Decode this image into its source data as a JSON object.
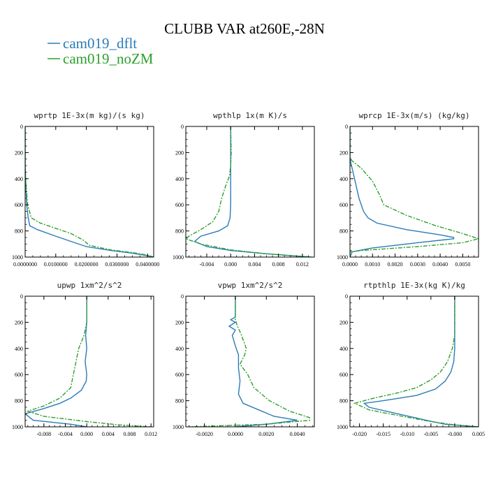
{
  "figure": {
    "title": "CLUBB VAR at260E,-28N",
    "legend": [
      {
        "name": "cam019_dflt",
        "color": "#2c7bb6"
      },
      {
        "name": "cam019_noZM",
        "color": "#2ca02c"
      }
    ]
  },
  "chart_data": [
    {
      "type": "line",
      "title": "wprtp   1E-3x(m kg)/(s kg)",
      "xlim": [
        0,
        0.042
      ],
      "ylim": [
        0,
        1000
      ],
      "y_inverted": true,
      "xticks": [
        0,
        0.01,
        0.02,
        0.03,
        0.04
      ],
      "xtick_labels": [
        "0.0000000",
        "0.0100000",
        "0.0200000",
        "0.0300000",
        "0.0400000"
      ],
      "yticks": [
        0,
        200,
        400,
        600,
        800,
        1000
      ],
      "series": [
        {
          "name": "cam019_dflt",
          "points": [
            [
              0,
              0
            ],
            [
              0,
              300
            ],
            [
              0.0002,
              450
            ],
            [
              0.0005,
              600
            ],
            [
              0.001,
              700
            ],
            [
              0.0015,
              760
            ],
            [
              0.004,
              790
            ],
            [
              0.01,
              840
            ],
            [
              0.015,
              880
            ],
            [
              0.02,
              920
            ],
            [
              0.028,
              950
            ],
            [
              0.035,
              970
            ],
            [
              0.04,
              990
            ],
            [
              0.042,
              1000
            ]
          ]
        },
        {
          "name": "cam019_noZM",
          "points": [
            [
              0,
              0
            ],
            [
              0,
              300
            ],
            [
              0.0003,
              450
            ],
            [
              0.0008,
              600
            ],
            [
              0.002,
              700
            ],
            [
              0.005,
              740
            ],
            [
              0.01,
              780
            ],
            [
              0.015,
              820
            ],
            [
              0.019,
              870
            ],
            [
              0.021,
              910
            ],
            [
              0.028,
              945
            ],
            [
              0.035,
              965
            ],
            [
              0.04,
              985
            ],
            [
              0.042,
              1000
            ]
          ]
        }
      ]
    },
    {
      "type": "line",
      "title": "wpthlp   1x(m K)/s",
      "xlim": [
        -0.0075,
        0.014
      ],
      "ylim": [
        0,
        1000
      ],
      "y_inverted": true,
      "xticks": [
        -0.004,
        0,
        0.004,
        0.008,
        0.012
      ],
      "xtick_labels": [
        "-0.004",
        "0.000",
        "0.004",
        "0.008",
        "0.012"
      ],
      "yticks": [
        0,
        200,
        400,
        600,
        800,
        1000
      ],
      "series": [
        {
          "name": "cam019_dflt",
          "points": [
            [
              0,
              0
            ],
            [
              0,
              200
            ],
            [
              0,
              400
            ],
            [
              0,
              600
            ],
            [
              -0.0001,
              700
            ],
            [
              -0.0005,
              760
            ],
            [
              -0.002,
              800
            ],
            [
              -0.005,
              840
            ],
            [
              -0.006,
              880
            ],
            [
              -0.004,
              920
            ],
            [
              0,
              950
            ],
            [
              0.006,
              975
            ],
            [
              0.012,
              995
            ],
            [
              0.0135,
              1000
            ]
          ]
        },
        {
          "name": "cam019_noZM",
          "points": [
            [
              0,
              0
            ],
            [
              0.0001,
              200
            ],
            [
              0,
              300
            ],
            [
              -0.0002,
              380
            ],
            [
              -0.0008,
              450
            ],
            [
              -0.0015,
              550
            ],
            [
              -0.002,
              650
            ],
            [
              -0.003,
              730
            ],
            [
              -0.005,
              790
            ],
            [
              -0.007,
              840
            ],
            [
              -0.0075,
              860
            ],
            [
              -0.005,
              900
            ],
            [
              0,
              945
            ],
            [
              0.006,
              975
            ],
            [
              0.012,
              995
            ],
            [
              0.0135,
              1000
            ]
          ]
        }
      ]
    },
    {
      "type": "line",
      "title": "wprcp   1E-3x(m/s) (kg/kg)",
      "xlim": [
        0,
        0.0057
      ],
      "ylim": [
        0,
        1000
      ],
      "y_inverted": true,
      "xticks": [
        0,
        0.001,
        0.002,
        0.003,
        0.004,
        0.005
      ],
      "xtick_labels": [
        "0.0000",
        "0.0010",
        "0.0020",
        "0.0030",
        "0.0040",
        "0.0050"
      ],
      "yticks": [
        0,
        200,
        400,
        600,
        800,
        1000
      ],
      "series": [
        {
          "name": "cam019_dflt",
          "points": [
            [
              0,
              0
            ],
            [
              0,
              250
            ],
            [
              0.0002,
              400
            ],
            [
              0.0004,
              550
            ],
            [
              0.0006,
              650
            ],
            [
              0.0008,
              700
            ],
            [
              0.0012,
              740
            ],
            [
              0.0025,
              790
            ],
            [
              0.004,
              830
            ],
            [
              0.0046,
              850
            ],
            [
              0.0046,
              860
            ],
            [
              0.003,
              890
            ],
            [
              0.001,
              930
            ],
            [
              0.0001,
              960
            ],
            [
              0,
              1000
            ]
          ]
        },
        {
          "name": "cam019_noZM",
          "points": [
            [
              0,
              0
            ],
            [
              0,
              250
            ],
            [
              0.0005,
              320
            ],
            [
              0.001,
              420
            ],
            [
              0.0013,
              520
            ],
            [
              0.0015,
              600
            ],
            [
              0.0025,
              680
            ],
            [
              0.0038,
              760
            ],
            [
              0.005,
              820
            ],
            [
              0.0057,
              860
            ],
            [
              0.005,
              890
            ],
            [
              0.003,
              920
            ],
            [
              0.0005,
              950
            ],
            [
              0,
              960
            ],
            [
              0,
              1000
            ]
          ]
        }
      ]
    },
    {
      "type": "line",
      "title": "upwp   1xm^2/s^2",
      "xlim": [
        -0.0115,
        0.0125
      ],
      "ylim": [
        0,
        1000
      ],
      "y_inverted": true,
      "xticks": [
        -0.008,
        -0.004,
        0,
        0.004,
        0.008,
        0.012
      ],
      "xtick_labels": [
        "-0.008",
        "-0.004",
        "0.000",
        "0.004",
        "0.008",
        "0.012"
      ],
      "yticks": [
        0,
        200,
        400,
        600,
        800,
        1000
      ],
      "series": [
        {
          "name": "cam019_dflt",
          "points": [
            [
              0,
              0
            ],
            [
              0,
              200
            ],
            [
              -0.0002,
              300
            ],
            [
              0,
              400
            ],
            [
              -0.0003,
              500
            ],
            [
              0,
              600
            ],
            [
              -0.0001,
              650
            ],
            [
              -0.001,
              720
            ],
            [
              -0.003,
              780
            ],
            [
              -0.005,
              820
            ],
            [
              -0.008,
              860
            ],
            [
              -0.0115,
              900
            ],
            [
              -0.01,
              950
            ],
            [
              -0.003,
              980
            ],
            [
              0,
              1000
            ]
          ]
        },
        {
          "name": "cam019_noZM",
          "points": [
            [
              0,
              0
            ],
            [
              0,
              200
            ],
            [
              -0.0005,
              300
            ],
            [
              -0.0015,
              400
            ],
            [
              -0.002,
              500
            ],
            [
              -0.0025,
              600
            ],
            [
              -0.003,
              700
            ],
            [
              -0.005,
              780
            ],
            [
              -0.008,
              840
            ],
            [
              -0.011,
              880
            ],
            [
              -0.008,
              920
            ],
            [
              0,
              960
            ],
            [
              0.006,
              985
            ],
            [
              0.012,
              1000
            ]
          ]
        }
      ]
    },
    {
      "type": "line",
      "title": "vpwp   1xm^2/s^2",
      "xlim": [
        -0.0032,
        0.0051
      ],
      "ylim": [
        0,
        1000
      ],
      "y_inverted": true,
      "xticks": [
        -0.002,
        0,
        0.002,
        0.004
      ],
      "xtick_labels": [
        "-0.0020",
        "0.0000",
        "0.0020",
        "0.0040"
      ],
      "yticks": [
        0,
        200,
        400,
        600,
        800,
        1000
      ],
      "series": [
        {
          "name": "cam019_dflt",
          "points": [
            [
              0,
              0
            ],
            [
              0,
              160
            ],
            [
              -0.0003,
              180
            ],
            [
              0,
              200
            ],
            [
              -0.0004,
              230
            ],
            [
              0,
              260
            ],
            [
              -0.0002,
              300
            ],
            [
              0,
              380
            ],
            [
              0.0002,
              450
            ],
            [
              0.0002,
              550
            ],
            [
              0.0003,
              650
            ],
            [
              0.0002,
              750
            ],
            [
              0.0005,
              820
            ],
            [
              0.0015,
              870
            ],
            [
              0.0025,
              920
            ],
            [
              0.004,
              950
            ],
            [
              0.002,
              980
            ],
            [
              0,
              1000
            ]
          ]
        },
        {
          "name": "cam019_noZM",
          "points": [
            [
              0,
              0
            ],
            [
              0,
              180
            ],
            [
              0.0001,
              220
            ],
            [
              0.0004,
              300
            ],
            [
              0.0007,
              400
            ],
            [
              0.0006,
              450
            ],
            [
              0.0003,
              520
            ],
            [
              0.0008,
              600
            ],
            [
              0.0012,
              700
            ],
            [
              0.0022,
              800
            ],
            [
              0.0035,
              880
            ],
            [
              0.0048,
              930
            ],
            [
              0.0048,
              950
            ],
            [
              0.002,
              980
            ],
            [
              -0.003,
              1000
            ]
          ]
        }
      ]
    },
    {
      "type": "line",
      "title": "rtpthlp   1E-3x(kg K)/kg",
      "xlim": [
        -0.022,
        0.005
      ],
      "ylim": [
        0,
        1000
      ],
      "y_inverted": true,
      "xticks": [
        -0.02,
        -0.015,
        -0.01,
        -0.005,
        0,
        0.005
      ],
      "xtick_labels": [
        "-0.020",
        "-0.015",
        "-0.010",
        "-0.005",
        "-0.000",
        "0.005"
      ],
      "yticks": [
        0,
        200,
        400,
        600,
        800,
        1000
      ],
      "series": [
        {
          "name": "cam019_dflt",
          "points": [
            [
              0,
              0
            ],
            [
              0,
              300
            ],
            [
              0,
              400
            ],
            [
              -0.0002,
              500
            ],
            [
              -0.0008,
              580
            ],
            [
              -0.002,
              650
            ],
            [
              -0.004,
              710
            ],
            [
              -0.008,
              760
            ],
            [
              -0.015,
              800
            ],
            [
              -0.019,
              820
            ],
            [
              -0.018,
              850
            ],
            [
              -0.012,
              900
            ],
            [
              -0.006,
              950
            ],
            [
              -0.002,
              980
            ],
            [
              0.005,
              1000
            ]
          ]
        },
        {
          "name": "cam019_noZM",
          "points": [
            [
              0,
              0
            ],
            [
              0,
              300
            ],
            [
              -0.0005,
              400
            ],
            [
              -0.0015,
              500
            ],
            [
              -0.003,
              580
            ],
            [
              -0.005,
              640
            ],
            [
              -0.008,
              700
            ],
            [
              -0.012,
              740
            ],
            [
              -0.017,
              780
            ],
            [
              -0.021,
              820
            ],
            [
              -0.018,
              870
            ],
            [
              -0.011,
              920
            ],
            [
              -0.005,
              960
            ],
            [
              0,
              985
            ],
            [
              0.005,
              1000
            ]
          ]
        }
      ]
    }
  ]
}
